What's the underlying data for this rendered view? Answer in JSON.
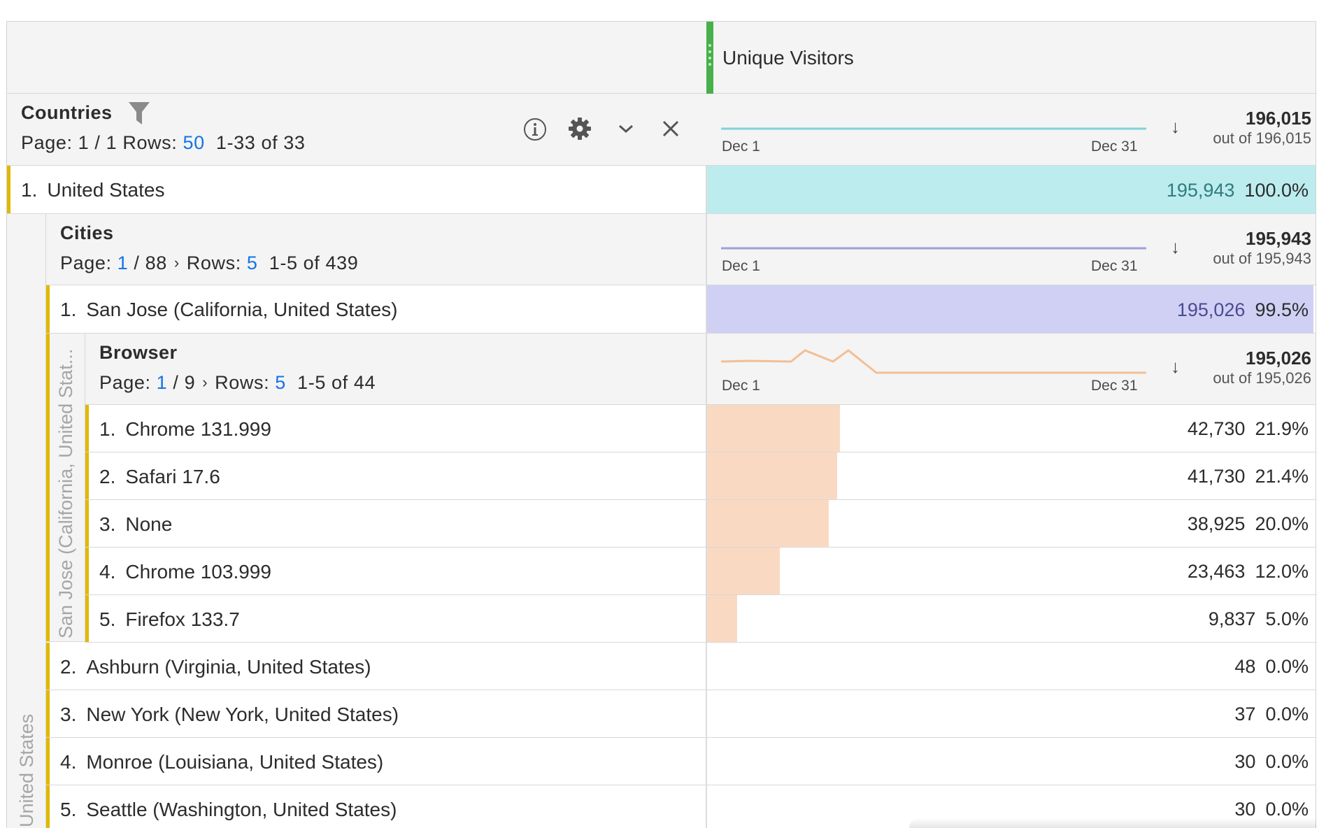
{
  "metric_header": {
    "title": "Unique Visitors"
  },
  "countries": {
    "title": "Countries",
    "page_label": "Page:",
    "page_current": "1",
    "page_total": "1",
    "rows_label": "Rows:",
    "rows_value": "50",
    "range": "1-33 of 33",
    "total": "196,015",
    "out_of": "out of 196,015",
    "spark_start": "Dec 1",
    "spark_end": "Dec 31",
    "spark_color": "#7fd3d9"
  },
  "country_row": {
    "index": "1.",
    "name": "United States",
    "value": "195,943",
    "pct": "100.0%",
    "bar_fraction": 1.0,
    "bar_color": "#bcecee"
  },
  "country_rotated_label": "United States",
  "cities": {
    "title": "Cities",
    "page_label": "Page:",
    "page_current": "1",
    "page_total": "88",
    "rows_label": "Rows:",
    "rows_value": "5",
    "range": "1-5 of 439",
    "total": "195,943",
    "out_of": "out of 195,943",
    "spark_start": "Dec 1",
    "spark_end": "Dec 31",
    "spark_color": "#9f9fdc"
  },
  "city_row_1": {
    "index": "1.",
    "name": "San Jose (California, United States)",
    "value": "195,026",
    "pct": "99.5%",
    "bar_fraction": 0.995,
    "bar_color": "#cfd0f4"
  },
  "city_rotated_label": "San Jose (California, United Stat...",
  "browser": {
    "title": "Browser",
    "page_label": "Page:",
    "page_current": "1",
    "page_total": "9",
    "rows_label": "Rows:",
    "rows_value": "5",
    "range": "1-5 of 44",
    "total": "195,026",
    "out_of": "out of 195,026",
    "spark_start": "Dec 1",
    "spark_end": "Dec 31",
    "spark_color": "#f2bf94"
  },
  "browser_rows": [
    {
      "index": "1.",
      "name": "Chrome 131.999",
      "value": "42,730",
      "pct": "21.9%",
      "bar_fraction": 0.219
    },
    {
      "index": "2.",
      "name": "Safari 17.6",
      "value": "41,730",
      "pct": "21.4%",
      "bar_fraction": 0.214
    },
    {
      "index": "3.",
      "name": "None",
      "value": "38,925",
      "pct": "20.0%",
      "bar_fraction": 0.2
    },
    {
      "index": "4.",
      "name": "Chrome 103.999",
      "value": "23,463",
      "pct": "12.0%",
      "bar_fraction": 0.12
    },
    {
      "index": "5.",
      "name": "Firefox 133.7",
      "value": "9,837",
      "pct": "5.0%",
      "bar_fraction": 0.05
    }
  ],
  "browser_bar_color": "#fad9c3",
  "city_rows": [
    {
      "index": "2.",
      "name": "Ashburn (Virginia, United States)",
      "value": "48",
      "pct": "0.0%"
    },
    {
      "index": "3.",
      "name": "New York (New York, United States)",
      "value": "37",
      "pct": "0.0%"
    },
    {
      "index": "4.",
      "name": "Monroe (Louisiana, United States)",
      "value": "30",
      "pct": "0.0%"
    },
    {
      "index": "5.",
      "name": "Seattle (Washington, United States)",
      "value": "30",
      "pct": "0.0%"
    }
  ],
  "icons": {
    "filter": "filter-icon",
    "info": "info-icon",
    "settings": "gear-icon",
    "expand": "chevron-down-icon",
    "close": "close-icon",
    "sort": "sort-down-arrow-icon"
  },
  "accent_green": "#47b04b",
  "row_marker_color": "#e1b800"
}
